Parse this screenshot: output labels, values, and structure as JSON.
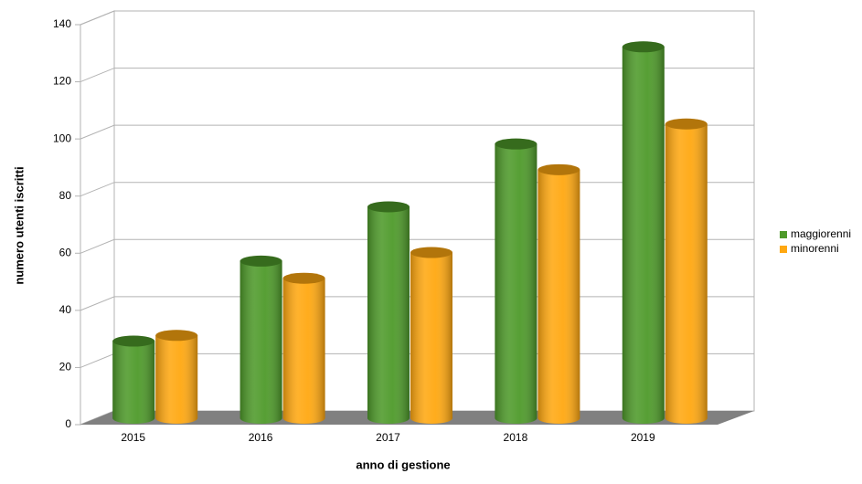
{
  "chart_data": {
    "type": "bar3d",
    "x_label": "anno di gestione",
    "y_label": "numero utenti iscritti",
    "categories": [
      "2015",
      "2016",
      "2017",
      "2018",
      "2019"
    ],
    "series": [
      {
        "name": "maggiorenni",
        "color": "#4e9a2a",
        "values": [
          27,
          55,
          74,
          96,
          130
        ]
      },
      {
        "name": "minorenni",
        "color": "#ffa811",
        "values": [
          29,
          49,
          58,
          87,
          103
        ]
      }
    ],
    "ylim": [
      0,
      140
    ],
    "yticks": [
      0,
      20,
      40,
      60,
      80,
      100,
      120,
      140
    ],
    "grid": true,
    "legend": "right"
  }
}
